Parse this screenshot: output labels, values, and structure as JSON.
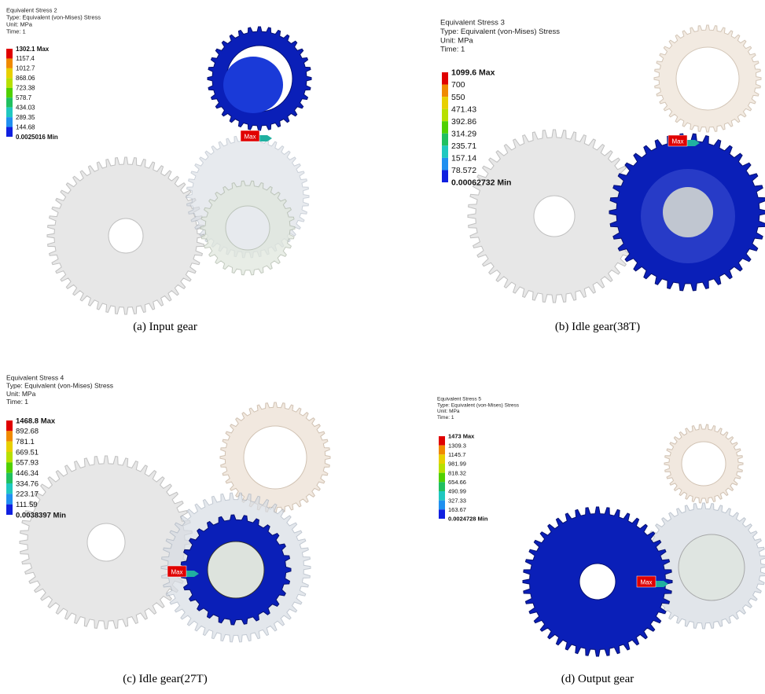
{
  "panels": [
    {
      "header": [
        "Equivalent Stress 2",
        "Type: Equivalent (von-Mises) Stress",
        "Unit: MPa",
        "Time: 1"
      ],
      "legend": [
        "1302.1 Max",
        "1157.4",
        "1012.7",
        "868.06",
        "723.38",
        "578.7",
        "434.03",
        "289.35",
        "144.68",
        "0.0025016 Min"
      ],
      "max_tag": "Max",
      "caption": "(a) Input gear"
    },
    {
      "header": [
        "Equivalent Stress 3",
        "Type: Equivalent (von-Mises) Stress",
        "Unit: MPa",
        "Time: 1"
      ],
      "legend": [
        "1099.6 Max",
        "700",
        "550",
        "471.43",
        "392.86",
        "314.29",
        "235.71",
        "157.14",
        "78.572",
        "0.00062732 Min"
      ],
      "max_tag": "Max",
      "caption": "(b) Idle gear(38T)"
    },
    {
      "header": [
        "Equivalent Stress 4",
        "Type: Equivalent (von-Mises) Stress",
        "Unit: MPa",
        "Time: 1"
      ],
      "legend": [
        "1468.8 Max",
        "892.68",
        "781.1",
        "669.51",
        "557.93",
        "446.34",
        "334.76",
        "223.17",
        "111.59",
        "0.0038397 Min"
      ],
      "max_tag": "Max",
      "caption": "(c) Idle gear(27T)"
    },
    {
      "header": [
        "Equivalent Stress 5",
        "Type: Equivalent (von-Mises) Stress",
        "Unit: MPa",
        "Time: 1"
      ],
      "legend": [
        "1473 Max",
        "1309.3",
        "1145.7",
        "981.99",
        "818.32",
        "654.66",
        "490.99",
        "327.33",
        "163.67",
        "0.0024728 Min"
      ],
      "max_tag": "Max",
      "caption": "(d) Output gear"
    }
  ]
}
